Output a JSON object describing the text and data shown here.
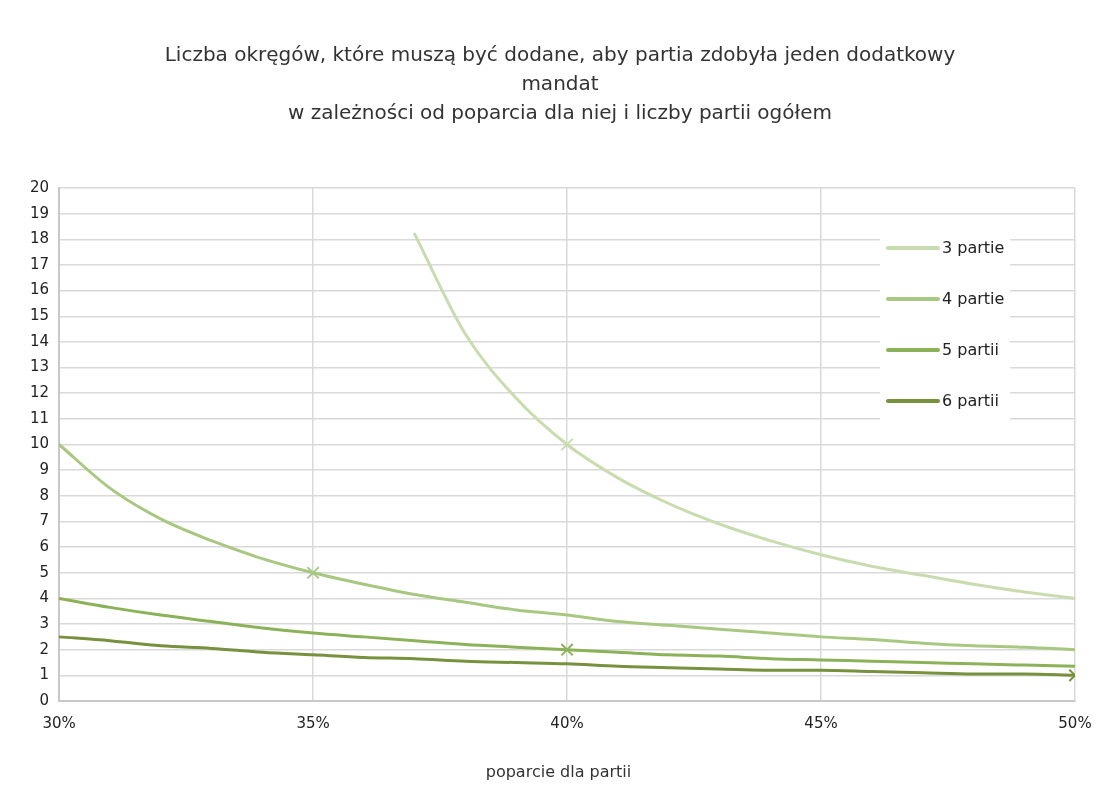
{
  "chart_data": {
    "type": "line",
    "title": "Liczba okręgów, które muszą być dodane, aby partia zdobyła jeden dodatkowy mandat\nw zależności od poparcia dla niej i liczby partii ogółem",
    "xlabel": "poparcie dla partii",
    "xlim": [
      30,
      50
    ],
    "xticks": [
      {
        "value": 30,
        "label": "30%"
      },
      {
        "value": 35,
        "label": "35%"
      },
      {
        "value": 40,
        "label": "40%"
      },
      {
        "value": 45,
        "label": "45%"
      },
      {
        "value": 50,
        "label": "50%"
      }
    ],
    "ylim": [
      0,
      20
    ],
    "yticks": [
      0,
      1,
      2,
      3,
      4,
      5,
      6,
      7,
      8,
      9,
      10,
      11,
      12,
      13,
      14,
      15,
      16,
      17,
      18,
      19,
      20
    ],
    "grid": true,
    "legend": "top right",
    "marker": "none",
    "line_style": "solid",
    "series": [
      {
        "name": "3 partie",
        "color": "#c9dcb0",
        "x": [
          37,
          38,
          39,
          40,
          41,
          42,
          43,
          44,
          45,
          46,
          47,
          48,
          49,
          50
        ],
        "values": [
          18.2,
          14.3,
          11.8,
          10,
          8.7,
          7.7,
          6.9,
          6.25,
          5.7,
          5.25,
          4.9,
          4.55,
          4.25,
          4
        ]
      },
      {
        "name": "4 partie",
        "color": "#a8c882",
        "x": [
          30,
          31,
          32,
          33,
          34,
          35,
          36,
          37,
          38,
          39,
          40,
          41,
          42,
          43,
          44,
          45,
          46,
          47,
          48,
          49,
          50
        ],
        "values": [
          10,
          8.3,
          7.1,
          6.25,
          5.55,
          5,
          4.55,
          4.15,
          3.85,
          3.55,
          3.35,
          3.1,
          2.95,
          2.8,
          2.65,
          2.5,
          2.4,
          2.25,
          2.15,
          2.1,
          2
        ]
      },
      {
        "name": "5 partii",
        "color": "#8cb259",
        "x": [
          30,
          31,
          32,
          33,
          34,
          35,
          36,
          37,
          38,
          39,
          40,
          41,
          42,
          43,
          44,
          45,
          46,
          47,
          48,
          49,
          50
        ],
        "values": [
          4,
          3.65,
          3.35,
          3.1,
          2.85,
          2.65,
          2.5,
          2.35,
          2.2,
          2.1,
          2,
          1.9,
          1.8,
          1.75,
          1.65,
          1.6,
          1.55,
          1.5,
          1.45,
          1.4,
          1.35
        ]
      },
      {
        "name": "6 partii",
        "color": "#77913f",
        "x": [
          30,
          31,
          32,
          33,
          34,
          35,
          36,
          37,
          38,
          39,
          40,
          41,
          42,
          43,
          44,
          45,
          46,
          47,
          48,
          49,
          50
        ],
        "values": [
          2.5,
          2.35,
          2.15,
          2.05,
          1.9,
          1.8,
          1.7,
          1.65,
          1.55,
          1.5,
          1.45,
          1.35,
          1.3,
          1.25,
          1.2,
          1.2,
          1.15,
          1.1,
          1.05,
          1.05,
          1
        ]
      },
      {
        "type": "scatter",
        "marker": "cross",
        "colors": [
          "#c9dcb0",
          "#a8c882",
          "#8cb259",
          "#77913f"
        ],
        "x": [
          40,
          35,
          40,
          50
        ],
        "values": [
          10,
          5,
          2,
          1
        ]
      }
    ]
  }
}
